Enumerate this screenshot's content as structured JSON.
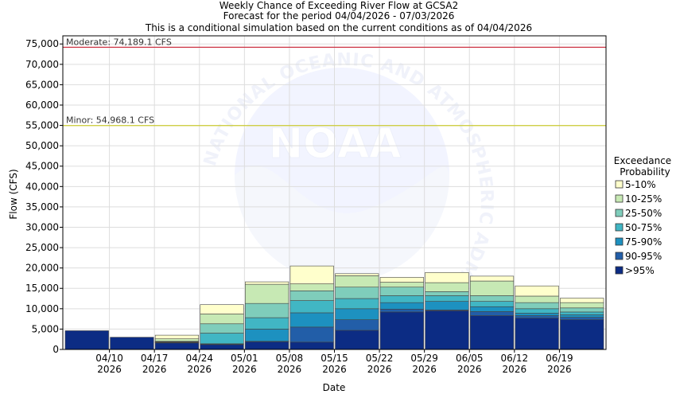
{
  "chart_data": {
    "type": "bar",
    "title": "Weekly Chance of Exceeding River Flow at GCSA2",
    "subtitle": "Forecast for the period 04/04/2026 - 07/03/2026",
    "subtitle2": "This is a conditional simulation based on the current conditions as of 04/04/2026",
    "xlabel": "Date",
    "ylabel": "Flow (CFS)",
    "ylim": [
      0,
      77000
    ],
    "yticks": [
      0,
      5000,
      10000,
      15000,
      20000,
      25000,
      30000,
      35000,
      40000,
      45000,
      50000,
      55000,
      60000,
      65000,
      70000,
      75000
    ],
    "ytick_labels": [
      "0",
      "5,000",
      "10,000",
      "15,000",
      "20,000",
      "25,000",
      "30,000",
      "35,000",
      "40,000",
      "45,000",
      "50,000",
      "55,000",
      "60,000",
      "65,000",
      "70,000",
      "75,000"
    ],
    "xtick_labels": [
      {
        "date": "04/10",
        "year": "2026"
      },
      {
        "date": "04/17",
        "year": "2026"
      },
      {
        "date": "04/24",
        "year": "2026"
      },
      {
        "date": "05/01",
        "year": "2026"
      },
      {
        "date": "05/08",
        "year": "2026"
      },
      {
        "date": "05/15",
        "year": "2026"
      },
      {
        "date": "05/22",
        "year": "2026"
      },
      {
        "date": "05/29",
        "year": "2026"
      },
      {
        "date": "06/05",
        "year": "2026"
      },
      {
        "date": "06/12",
        "year": "2026"
      },
      {
        "date": "06/19",
        "year": "2026"
      }
    ],
    "grid": true,
    "legend_title": "Exceedance Probability",
    "legend_position": "right",
    "series": [
      {
        "name": "5-10%",
        "color": "#ffffcc"
      },
      {
        "name": "10-25%",
        "color": "#c7e9b4"
      },
      {
        "name": "25-50%",
        "color": "#7fcdbb"
      },
      {
        "name": "50-75%",
        "color": "#41b6c4"
      },
      {
        "name": "75-90%",
        "color": "#1d91c0"
      },
      {
        "name": "90-95%",
        "color": "#225ea8"
      },
      {
        "name": ">95%",
        "color": "#0c2c84"
      }
    ],
    "weeks": [
      {
        "levels": [
          4600,
          4600,
          4600,
          4600,
          4600,
          4600,
          4600,
          4600
        ]
      },
      {
        "levels": [
          3000,
          3000,
          3000,
          3000,
          3000,
          3000,
          3000,
          3000
        ]
      },
      {
        "levels": [
          1600,
          1700,
          1800,
          1900,
          2000,
          2600,
          3500,
          3500
        ]
      },
      {
        "levels": [
          1200,
          1300,
          1400,
          4000,
          6300,
          8700,
          11000,
          11000
        ]
      },
      {
        "levels": [
          1900,
          2000,
          5000,
          7800,
          11300,
          16000,
          16600,
          16600
        ]
      },
      {
        "levels": [
          1800,
          5500,
          9000,
          12000,
          14400,
          16100,
          20500,
          20500
        ]
      },
      {
        "levels": [
          4700,
          7300,
          10000,
          12500,
          15300,
          18100,
          18600,
          18600
        ]
      },
      {
        "levels": [
          9200,
          9900,
          11500,
          13200,
          15300,
          16500,
          17700,
          17700
        ]
      },
      {
        "levels": [
          9500,
          9700,
          11800,
          13200,
          14200,
          16400,
          18900,
          18900
        ]
      },
      {
        "levels": [
          8300,
          9300,
          10500,
          11800,
          13200,
          16800,
          18000,
          18000
        ]
      },
      {
        "levels": [
          7700,
          8300,
          8900,
          10000,
          11500,
          13100,
          15600,
          15600
        ]
      },
      {
        "levels": [
          7300,
          7900,
          8500,
          9200,
          10200,
          11500,
          12600,
          12600
        ]
      }
    ],
    "thresholds": [
      {
        "label": "Moderate: 74,189.1 CFS",
        "value": 74189.1,
        "color": "#cc3344"
      },
      {
        "label": "Minor: 54,968.1 CFS",
        "value": 54968.1,
        "color": "#cccc33"
      }
    ],
    "watermark": {
      "logo_text": "NOAA",
      "ring_text": "NATIONAL OCEANIC AND ATMOSPHERIC ADMINISTRATION"
    }
  }
}
